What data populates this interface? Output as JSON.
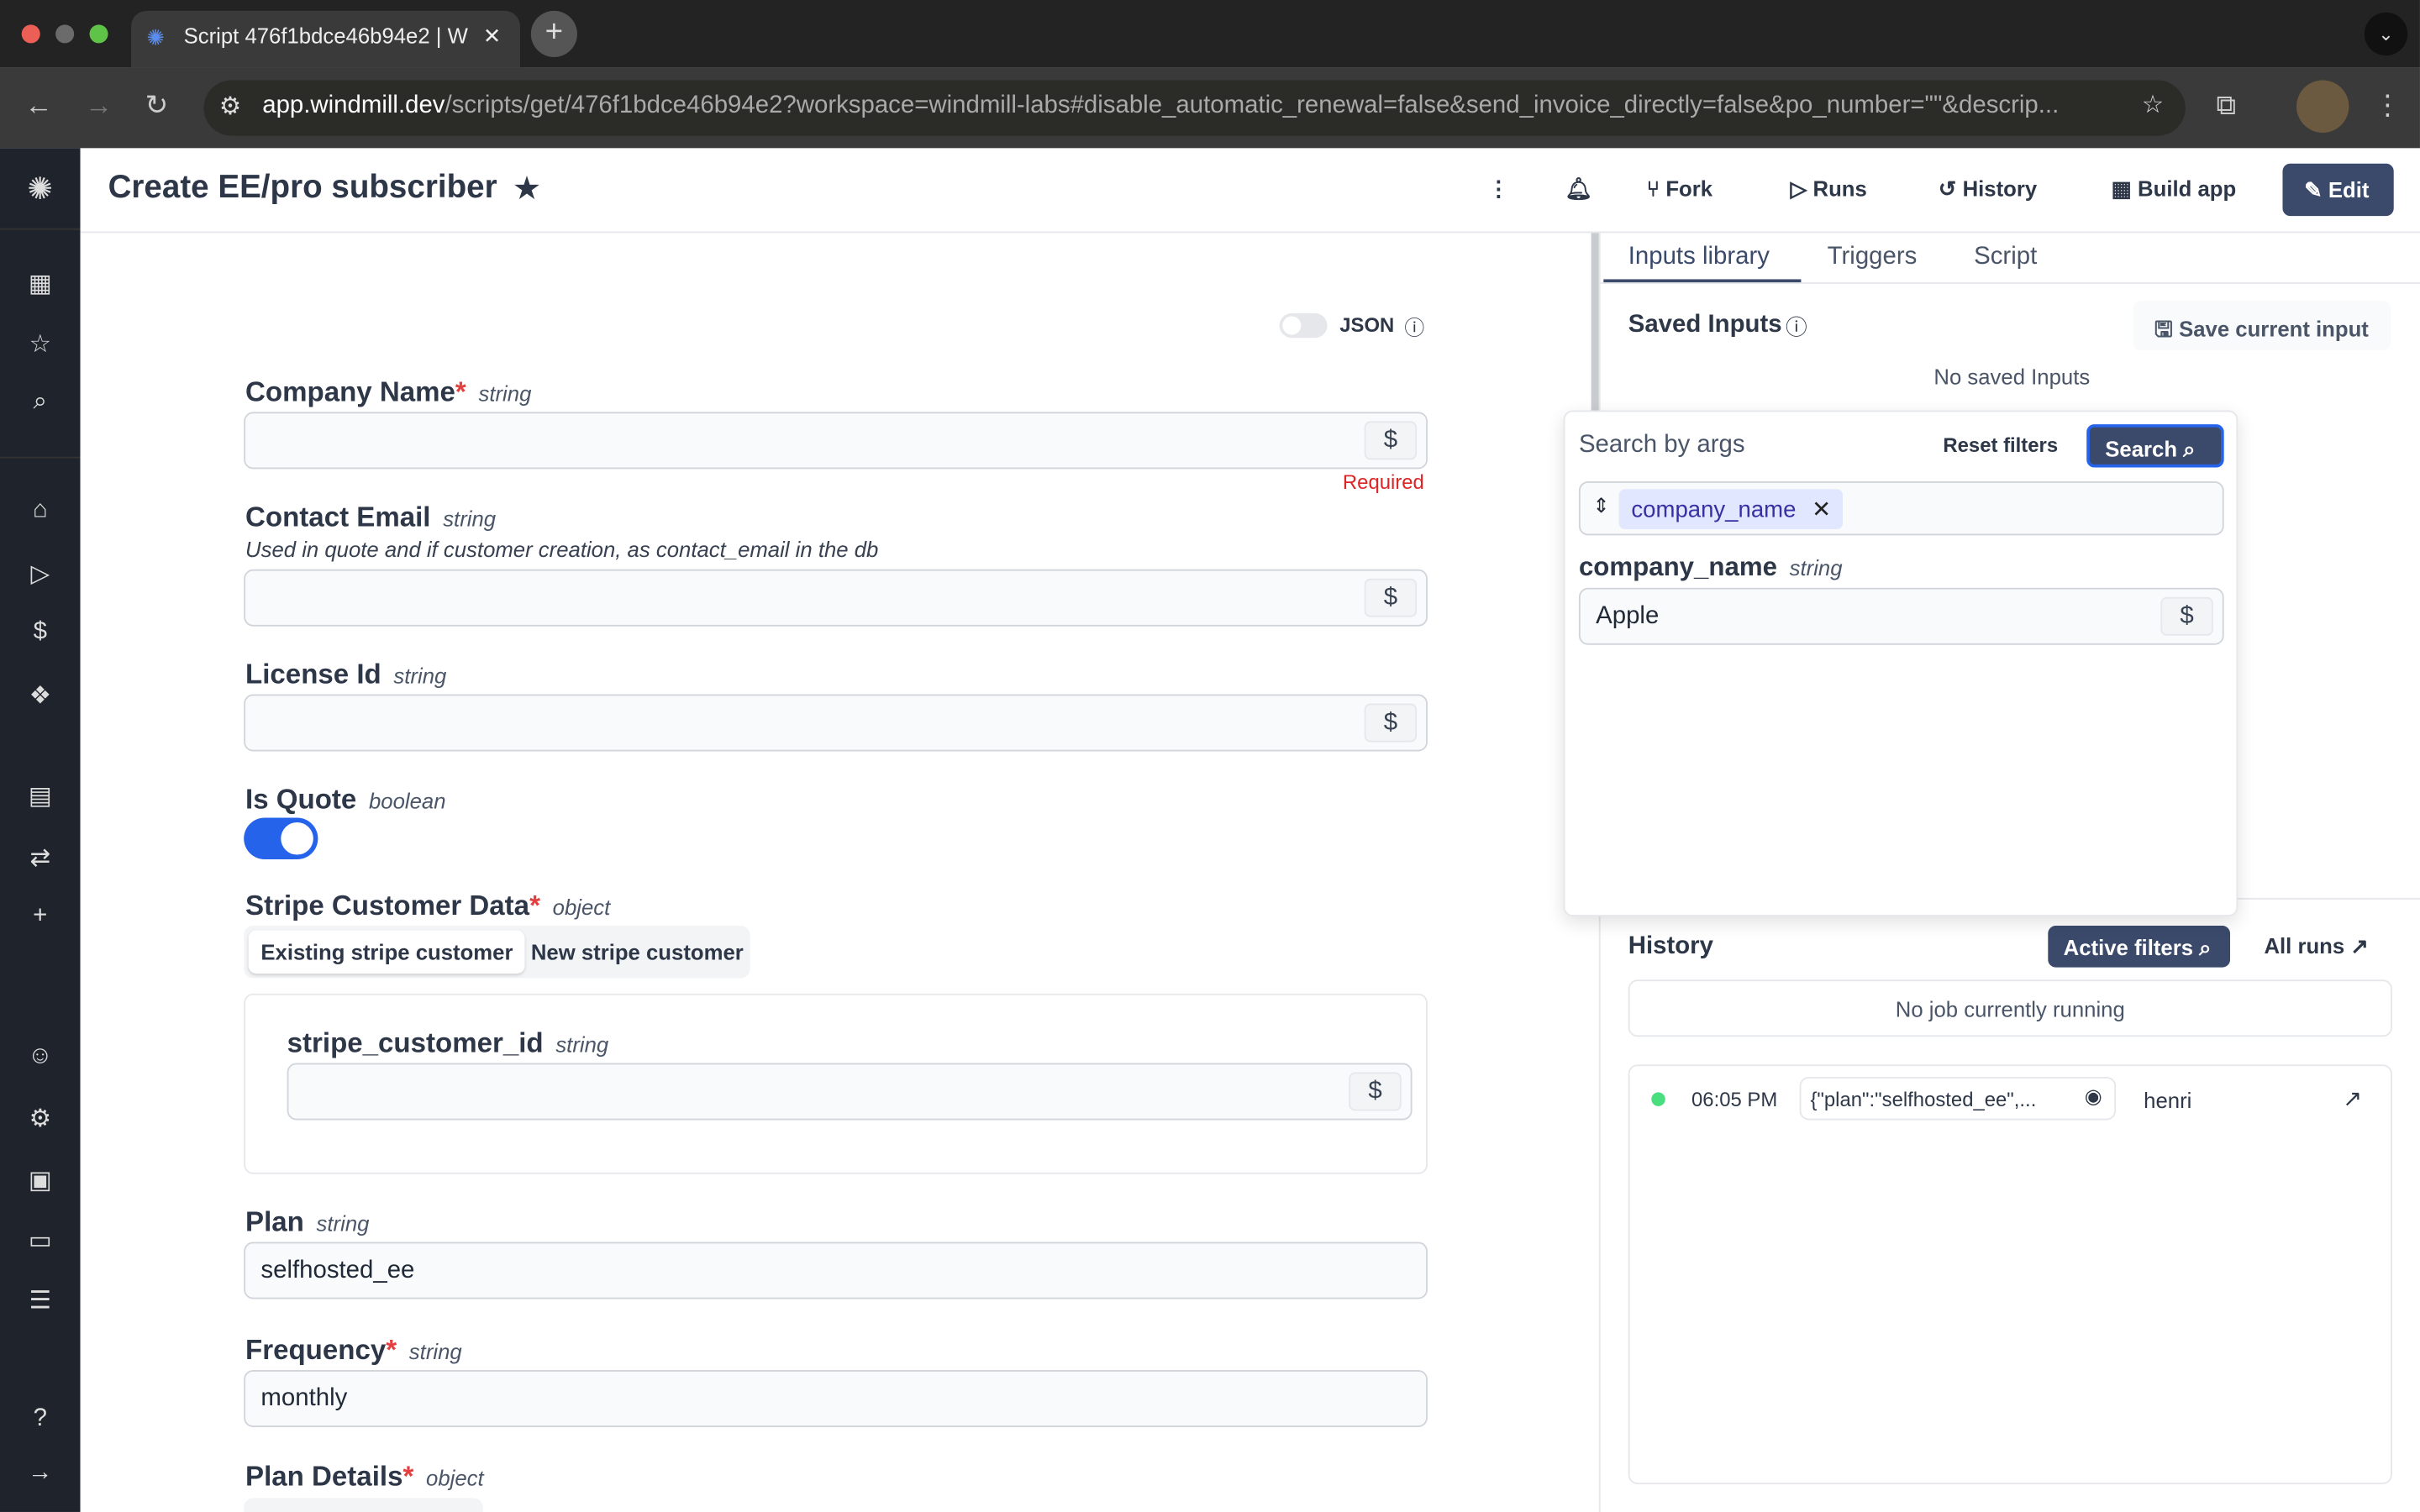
{
  "browser": {
    "tab_title": "Script 476f1bdce46b94e2 | W",
    "url_host": "app.windmill.dev",
    "url_rest": "/scripts/get/476f1bdce46b94e2?workspace=windmill-labs#disable_automatic_renewal=false&send_invoice_directly=false&po_number=\"\"&descrip..."
  },
  "header": {
    "title": "Create EE/pro subscriber",
    "fork": "Fork",
    "runs": "Runs",
    "history": "History",
    "build_app": "Build app",
    "edit": "Edit"
  },
  "form": {
    "json_label": "JSON",
    "company_name": {
      "label": "Company Name",
      "type": "string",
      "value": "",
      "error": "Required"
    },
    "contact_email": {
      "label": "Contact Email",
      "type": "string",
      "description": "Used in quote and if customer creation, as contact_email in the db",
      "value": ""
    },
    "license_id": {
      "label": "License Id",
      "type": "string",
      "value": ""
    },
    "is_quote": {
      "label": "Is Quote",
      "type": "boolean",
      "value": true
    },
    "stripe": {
      "label": "Stripe Customer Data",
      "type": "object",
      "tabs": [
        "Existing stripe customer",
        "New stripe customer"
      ],
      "field_label": "stripe_customer_id",
      "field_type": "string",
      "value": ""
    },
    "plan": {
      "label": "Plan",
      "type": "string",
      "value": "selfhosted_ee"
    },
    "frequency": {
      "label": "Frequency",
      "type": "string",
      "value": "monthly"
    },
    "plan_details": {
      "label": "Plan Details",
      "type": "object"
    },
    "dollar": "$"
  },
  "right": {
    "tabs": [
      "Inputs library",
      "Triggers",
      "Script"
    ],
    "saved_inputs": "Saved Inputs",
    "save_current": "Save current input",
    "no_saved": "No saved Inputs",
    "popover": {
      "title": "Search by args",
      "reset": "Reset filters",
      "search": "Search",
      "chip": "company_name",
      "field_label": "company_name",
      "field_type": "string",
      "value": "Apple"
    },
    "history": {
      "title": "History",
      "active_filters": "Active filters",
      "all_runs": "All runs",
      "no_job": "No job currently running",
      "job": {
        "time": "06:05 PM",
        "args": "{\"plan\":\"selfhosted_ee\",...",
        "user": "henri",
        "status_color": "#4ade80"
      }
    }
  }
}
